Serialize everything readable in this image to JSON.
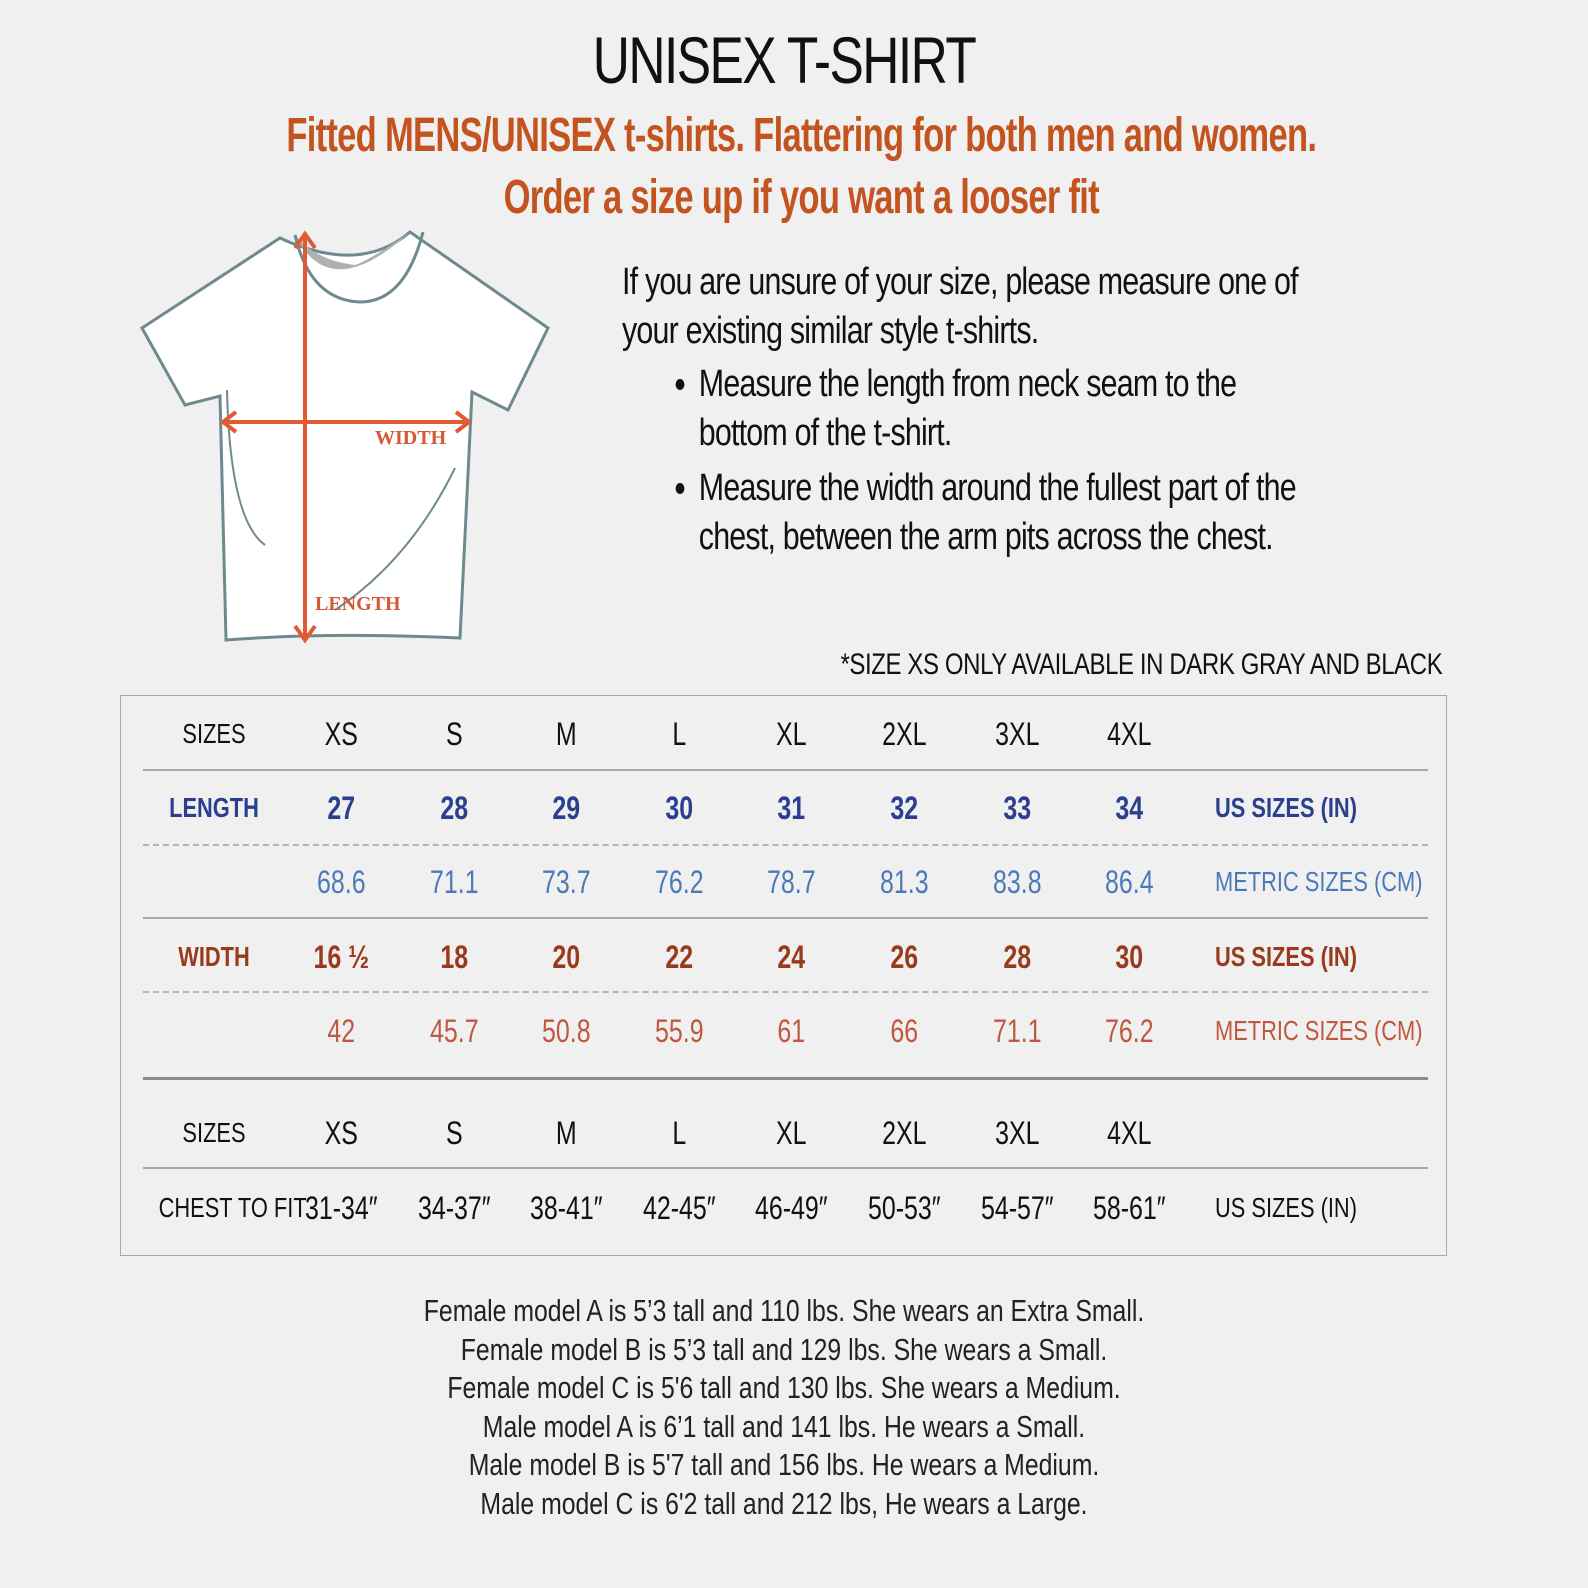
{
  "title": "UNISEX T-SHIRT",
  "subtitle": [
    "Fitted MENS/UNISEX t-shirts. Flattering for both men and women.",
    "Order a size up if you want a looser fit"
  ],
  "diagram": {
    "width_label": "WIDTH",
    "length_label": "LENGTH"
  },
  "instructions": {
    "intro": "If you are unsure of your size, please measure one of your existing similar style t-shirts.",
    "bullets": [
      "Measure the length from neck seam to the bottom of the t-shirt.",
      "Measure the width around the fullest part of the chest, between the arm pits across the chest."
    ]
  },
  "note": "*SIZE XS ONLY AVAILABLE IN DARK GRAY AND BLACK",
  "colors": {
    "accent": "#c4541f",
    "length_dark": "#2b3f8e",
    "length_light": "#4c7ab9",
    "width_dark": "#9a3a1c",
    "width_light": "#c0583f"
  },
  "table": {
    "sizes_label": "SIZES",
    "sizes": [
      "XS",
      "S",
      "M",
      "L",
      "XL",
      "2XL",
      "3XL",
      "4XL"
    ],
    "length": {
      "label": "LENGTH",
      "us": [
        "27",
        "28",
        "29",
        "30",
        "31",
        "32",
        "33",
        "34"
      ],
      "us_unit": "US SIZES (IN)",
      "metric": [
        "68.6",
        "71.1",
        "73.7",
        "76.2",
        "78.7",
        "81.3",
        "83.8",
        "86.4"
      ],
      "metric_unit": "METRIC SIZES (CM)"
    },
    "width": {
      "label": "WIDTH",
      "us": [
        "16 ½",
        "18",
        "20",
        "22",
        "24",
        "26",
        "28",
        "30"
      ],
      "us_unit": "US SIZES (IN)",
      "metric": [
        "42",
        "45.7",
        "50.8",
        "55.9",
        "61",
        "66",
        "71.1",
        "76.2"
      ],
      "metric_unit": "METRIC SIZES (CM)"
    },
    "chest": {
      "label": "CHEST TO FIT",
      "values": [
        "31-34″",
        "34-37″",
        "38-41″",
        "42-45″",
        "46-49″",
        "50-53″",
        "54-57″",
        "58-61″"
      ],
      "unit": "US SIZES (IN)"
    }
  },
  "models": [
    "Female model A is 5’3 tall and 110 lbs. She wears an Extra Small.",
    "Female model B is 5’3 tall and 129 lbs. She wears a Small.",
    "Female model C is 5'6 tall and 130 lbs. She wears a Medium.",
    "Male model A is 6’1 tall and 141 lbs. He wears a Small.",
    "Male model B is 5'7 tall and 156 lbs. He wears a Medium.",
    "Male model C is 6'2 tall and 212 lbs, He wears a Large."
  ]
}
